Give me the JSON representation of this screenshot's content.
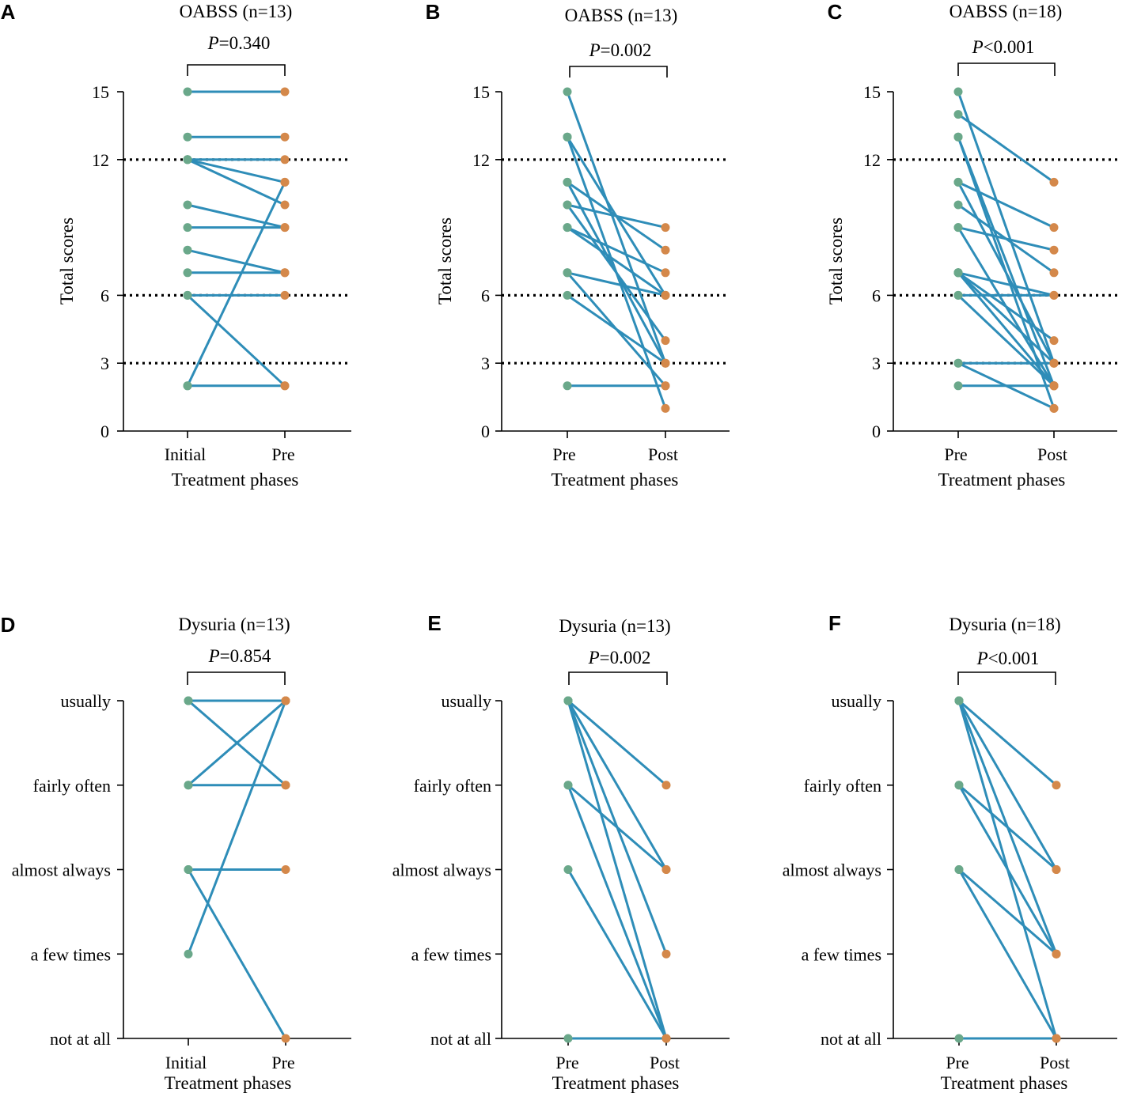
{
  "chart_data": [
    {
      "panel": "A",
      "type": "line",
      "title": "OABSS (n=13)",
      "p_label": "P",
      "p_value": "=0.340",
      "ylabel": "Total scores",
      "xlabel": "Treatment phases",
      "categories": [
        "Initial",
        "Pre"
      ],
      "ylim": [
        0,
        15
      ],
      "yticks": [
        0,
        3,
        6,
        12,
        15
      ],
      "reference_lines": [
        3,
        6,
        12
      ],
      "pairs": [
        [
          15,
          15
        ],
        [
          13,
          13
        ],
        [
          12,
          12
        ],
        [
          12,
          11
        ],
        [
          10,
          9
        ],
        [
          9,
          9
        ],
        [
          8,
          7
        ],
        [
          7,
          7
        ],
        [
          6,
          6
        ],
        [
          6,
          2
        ],
        [
          2,
          2
        ],
        [
          2,
          11
        ],
        [
          12,
          10
        ]
      ]
    },
    {
      "panel": "B",
      "type": "line",
      "title": "OABSS (n=13)",
      "p_label": "P",
      "p_value": "=0.002",
      "ylabel": "Total scores",
      "xlabel": "Treatment phases",
      "categories": [
        "Pre",
        "Post"
      ],
      "ylim": [
        0,
        15
      ],
      "yticks": [
        0,
        3,
        6,
        12,
        15
      ],
      "reference_lines": [
        3,
        6,
        12
      ],
      "pairs": [
        [
          15,
          3
        ],
        [
          13,
          6
        ],
        [
          13,
          1
        ],
        [
          11,
          8
        ],
        [
          11,
          3
        ],
        [
          10,
          9
        ],
        [
          10,
          4
        ],
        [
          9,
          6
        ],
        [
          9,
          7
        ],
        [
          7,
          6
        ],
        [
          7,
          2
        ],
        [
          6,
          3
        ],
        [
          2,
          2
        ]
      ]
    },
    {
      "panel": "C",
      "type": "line",
      "title": "OABSS (n=18)",
      "p_label": "P",
      "p_value": "<0.001",
      "ylabel": "Total scores",
      "xlabel": "Treatment phases",
      "categories": [
        "Pre",
        "Post"
      ],
      "ylim": [
        0,
        15
      ],
      "yticks": [
        0,
        3,
        6,
        12,
        15
      ],
      "reference_lines": [
        3,
        6,
        12
      ],
      "pairs": [
        [
          15,
          3
        ],
        [
          14,
          11
        ],
        [
          13,
          2
        ],
        [
          13,
          1
        ],
        [
          11,
          9
        ],
        [
          11,
          3
        ],
        [
          10,
          7
        ],
        [
          9,
          8
        ],
        [
          9,
          2
        ],
        [
          7,
          6
        ],
        [
          7,
          4
        ],
        [
          7,
          3
        ],
        [
          7,
          2
        ],
        [
          6,
          6
        ],
        [
          6,
          2
        ],
        [
          3,
          3
        ],
        [
          3,
          1
        ],
        [
          2,
          2
        ]
      ]
    },
    {
      "panel": "D",
      "type": "line",
      "title": "Dysuria (n=13)",
      "p_label": "P",
      "p_value": "=0.854",
      "ylabel": "",
      "xlabel": "Treatment phases",
      "categories": [
        "Initial",
        "Pre"
      ],
      "levels": [
        "not at all",
        "a few times",
        "almost always",
        "fairly often",
        "usually"
      ],
      "pairs": [
        [
          4,
          4
        ],
        [
          4,
          3
        ],
        [
          3,
          4
        ],
        [
          3,
          3
        ],
        [
          2,
          2
        ],
        [
          2,
          0
        ],
        [
          1,
          4
        ]
      ]
    },
    {
      "panel": "E",
      "type": "line",
      "title": "Dysuria (n=13)",
      "p_label": "P",
      "p_value": "=0.002",
      "ylabel": "",
      "xlabel": "Treatment phases",
      "categories": [
        "Pre",
        "Post"
      ],
      "levels": [
        "not at all",
        "a few times",
        "almost always",
        "fairly often",
        "usually"
      ],
      "pairs": [
        [
          4,
          3
        ],
        [
          4,
          2
        ],
        [
          4,
          1
        ],
        [
          4,
          0
        ],
        [
          3,
          2
        ],
        [
          3,
          0
        ],
        [
          2,
          0
        ],
        [
          0,
          0
        ]
      ]
    },
    {
      "panel": "F",
      "type": "line",
      "title": "Dysuria (n=18)",
      "p_label": "P",
      "p_value": "<0.001",
      "ylabel": "",
      "xlabel": "Treatment phases",
      "categories": [
        "Pre",
        "Post"
      ],
      "levels": [
        "not at all",
        "a few times",
        "almost always",
        "fairly often",
        "usually"
      ],
      "pairs": [
        [
          4,
          3
        ],
        [
          4,
          2
        ],
        [
          4,
          1
        ],
        [
          4,
          0
        ],
        [
          3,
          2
        ],
        [
          3,
          1
        ],
        [
          2,
          1
        ],
        [
          2,
          0
        ],
        [
          0,
          0
        ]
      ]
    }
  ]
}
